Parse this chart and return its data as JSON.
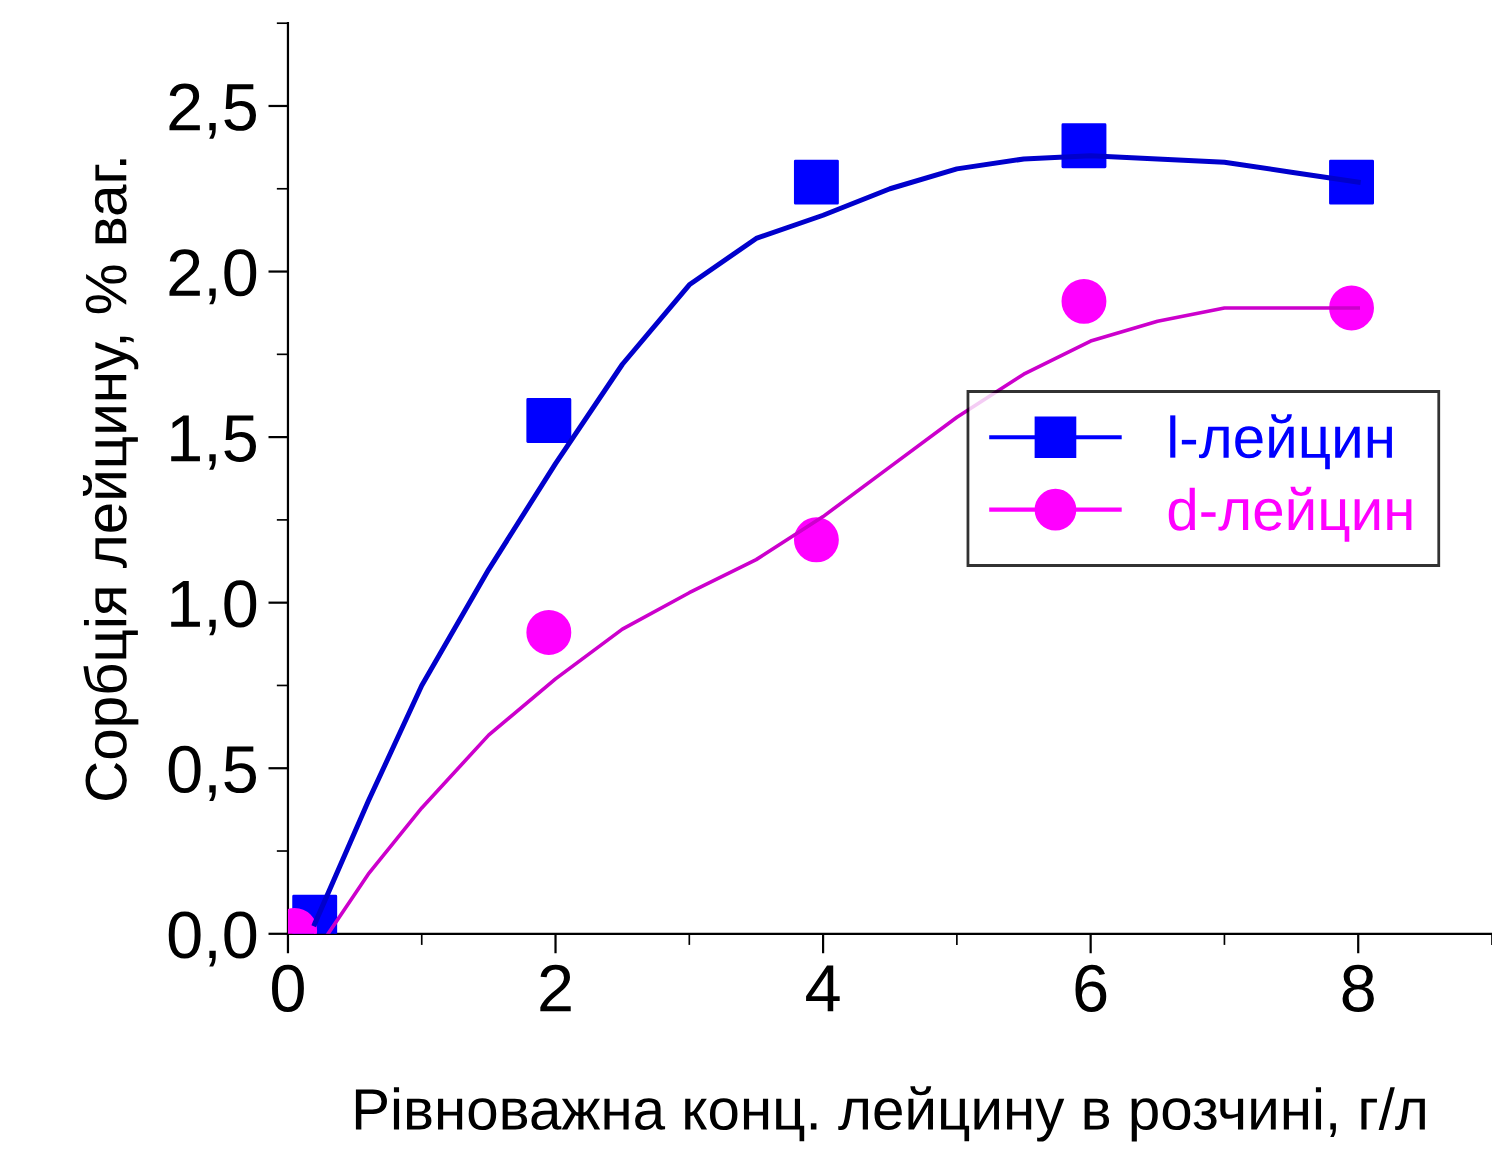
{
  "chart_data": {
    "type": "scatter",
    "xlabel": "Рівноважна конц. лейцину в розчині, г/л",
    "ylabel": "Сорбція лейцину, % ваг.",
    "xlim": [
      0,
      9.0
    ],
    "xticks": [
      0,
      2,
      4,
      6,
      8
    ],
    "ylim": [
      0,
      2.75
    ],
    "yticks": [
      {
        "value": 0,
        "label": "0,0"
      },
      {
        "value": 0.5,
        "label": "0,5"
      },
      {
        "value": 1.0,
        "label": "1,0"
      },
      {
        "value": 1.5,
        "label": "1,5"
      },
      {
        "value": 2.0,
        "label": "2,0"
      },
      {
        "value": 2.5,
        "label": "2,5"
      }
    ],
    "legend": "right",
    "grid": false,
    "series": [
      {
        "name": "l-лейцин",
        "marker": "square",
        "color": "#0000ff",
        "x": [
          0.2,
          1.95,
          3.95,
          5.95,
          7.95
        ],
        "values": [
          0.05,
          1.55,
          2.27,
          2.38,
          2.27
        ]
      },
      {
        "name": "d-лейцин",
        "marker": "circle",
        "color": "#ff00ff",
        "x": [
          0.05,
          1.95,
          3.95,
          5.95,
          7.95
        ],
        "values": [
          0.01,
          0.91,
          1.19,
          1.91,
          1.89
        ]
      },
      {
        "type": "line",
        "color": "#0000cc",
        "x": [
          0.2,
          0.6,
          1,
          1.5,
          2,
          2.5,
          3,
          3.5,
          4,
          4.5,
          5,
          5.5,
          6,
          6.5,
          7,
          7.5,
          8
        ],
        "values": [
          0.03,
          0.4,
          0.75,
          1.1,
          1.42,
          1.72,
          1.96,
          2.1,
          2.17,
          2.25,
          2.31,
          2.34,
          2.35,
          2.34,
          2.33,
          2.3,
          2.27
        ]
      },
      {
        "type": "line",
        "color": "#cc00cc",
        "x": [
          0.3,
          0.6,
          1,
          1.5,
          2,
          2.5,
          3,
          3.5,
          4,
          4.5,
          5,
          5.5,
          6,
          6.5,
          7,
          7.5,
          8
        ],
        "values": [
          0.0,
          0.18,
          0.38,
          0.6,
          0.77,
          0.92,
          1.03,
          1.13,
          1.26,
          1.41,
          1.56,
          1.69,
          1.79,
          1.85,
          1.89,
          1.89,
          1.89
        ]
      }
    ]
  }
}
